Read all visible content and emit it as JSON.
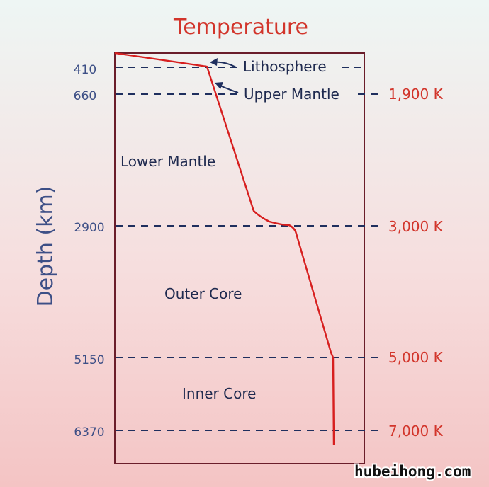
{
  "title": "Temperature",
  "y_axis_label": "Depth (km)",
  "depth_ticks": [
    "410",
    "660",
    "2900",
    "5150",
    "6370"
  ],
  "temperature_labels": [
    {
      "depth": 660,
      "label": "1,900 K"
    },
    {
      "depth": 2900,
      "label": "3,000 K"
    },
    {
      "depth": 5150,
      "label": "5,000 K"
    },
    {
      "depth": 6370,
      "label": "7,000 K"
    }
  ],
  "layers": {
    "lithosphere": "Lithosphere",
    "upper_mantle": "Upper Mantle",
    "lower_mantle": "Lower Mantle",
    "outer_core": "Outer Core",
    "inner_core": "Inner Core"
  },
  "watermark": "hubeihong.com",
  "colors": {
    "title": "#d2352b",
    "axis_text": "#3d4f86",
    "curve": "#d71f1f",
    "frame": "#6a1d2a",
    "dashed_lines": "#1f2f5e"
  }
}
